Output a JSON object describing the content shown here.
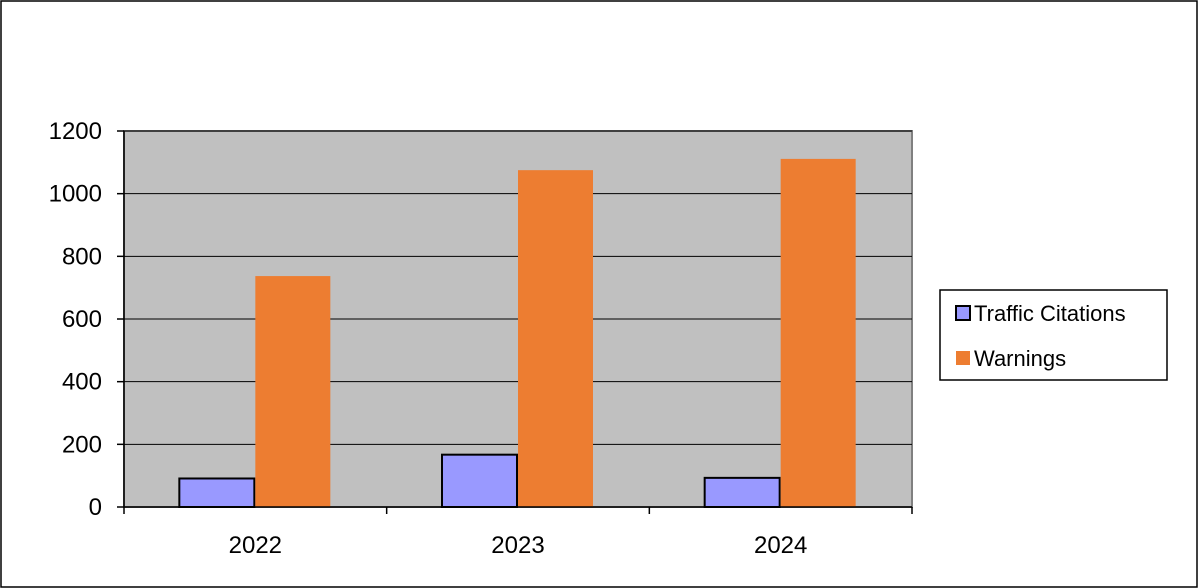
{
  "chart_data": {
    "type": "bar",
    "title": "",
    "xlabel": "",
    "ylabel": "",
    "categories": [
      "2022",
      "2023",
      "2024"
    ],
    "series": [
      {
        "name": "Traffic Citations",
        "values": [
          91,
          167,
          93
        ],
        "color": "#9999ff"
      },
      {
        "name": "Warnings",
        "values": [
          737,
          1075,
          1111
        ],
        "color": "#ed7d31"
      }
    ],
    "ylim": [
      0,
      1200
    ],
    "yticks": [
      0,
      200,
      400,
      600,
      800,
      1000,
      1200
    ],
    "grid": true,
    "legend_position": "right",
    "plot_background": "#c0c0c0"
  }
}
